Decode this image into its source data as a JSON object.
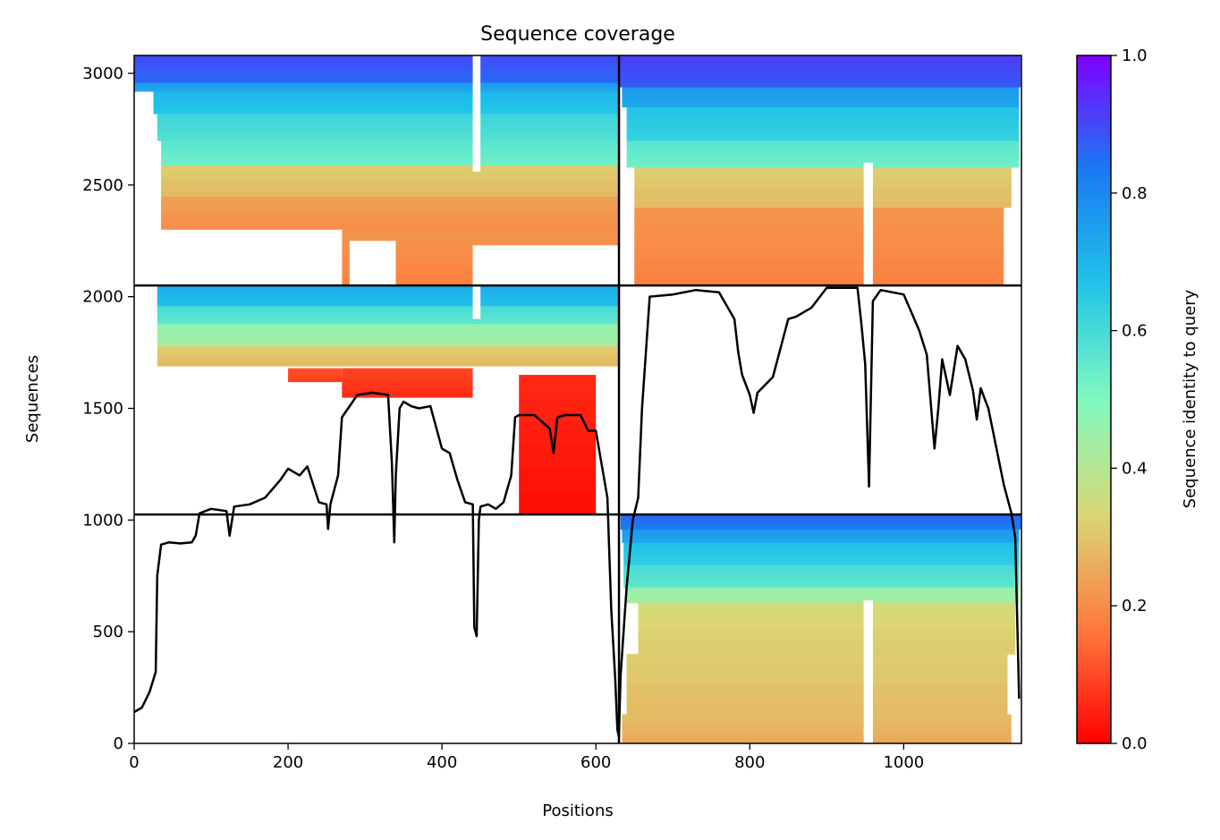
{
  "chart_data": {
    "type": "heatmap",
    "title": "Sequence coverage",
    "xlabel": "Positions",
    "ylabel": "Sequences",
    "xlim": [
      0,
      1153
    ],
    "ylim": [
      0,
      3080
    ],
    "x_ticks": [
      "0",
      "200",
      "400",
      "600",
      "800",
      "1000"
    ],
    "x_tick_values": [
      0,
      200,
      400,
      600,
      800,
      1000
    ],
    "y_ticks": [
      "0",
      "500",
      "1000",
      "1500",
      "2000",
      "2500",
      "3000"
    ],
    "y_tick_values": [
      0,
      500,
      1000,
      1500,
      2000,
      2500,
      3000
    ],
    "colorbar": {
      "label": "Sequence identity to query",
      "range": [
        0.0,
        1.0
      ],
      "ticks": [
        "0.0",
        "0.2",
        "0.4",
        "0.6",
        "0.8",
        "1.0"
      ],
      "tick_values": [
        0.0,
        0.2,
        0.4,
        0.6,
        0.8,
        1.0
      ],
      "colormap": "rainbow_r",
      "colors": [
        "#ff0000",
        "#ff7a3d",
        "#d8d874",
        "#80f9c0",
        "#20c4e8",
        "#1a7af3",
        "#8000ff"
      ]
    },
    "chain_boundaries": {
      "x": [
        630
      ],
      "y": [
        1025,
        2050
      ]
    },
    "blocks": [
      {
        "name": "block-bottom-right",
        "x_range": [
          630,
          1153
        ],
        "y_range": [
          0,
          1025
        ],
        "bands": [
          {
            "y": [
              0,
              130
            ],
            "x": [
              634,
              1140
            ],
            "identity": 0.27
          },
          {
            "y": [
              130,
              400
            ],
            "x": [
              640,
              1135
            ],
            "identity": 0.3
          },
          {
            "y": [
              400,
              630
            ],
            "x": [
              655,
              1145
            ],
            "identity": 0.33
          },
          {
            "y": [
              630,
              700
            ],
            "x": [
              640,
              1150
            ],
            "identity": 0.45
          },
          {
            "y": [
              700,
              800
            ],
            "x": [
              636,
              1150
            ],
            "identity": 0.58
          },
          {
            "y": [
              800,
              900
            ],
            "x": [
              636,
              1150
            ],
            "identity": 0.66
          },
          {
            "y": [
              900,
              960
            ],
            "x": [
              634,
              1150
            ],
            "identity": 0.75
          },
          {
            "y": [
              960,
              1025
            ],
            "x": [
              632,
              1152
            ],
            "identity": 0.85
          }
        ],
        "gaps": [
          {
            "x": [
              948,
              960
            ],
            "y": [
              0,
              640
            ]
          }
        ]
      },
      {
        "name": "block-top-left",
        "x_range": [
          0,
          630
        ],
        "y_range": [
          2050,
          3080
        ],
        "bands": [
          {
            "y": [
              2300,
              2450
            ],
            "x": [
              35,
              630
            ],
            "identity": 0.22
          },
          {
            "y": [
              2450,
              2590
            ],
            "x": [
              35,
              630
            ],
            "identity": 0.3
          },
          {
            "y": [
              2590,
              2700
            ],
            "x": [
              35,
              630
            ],
            "identity": 0.55
          },
          {
            "y": [
              2700,
              2820
            ],
            "x": [
              30,
              630
            ],
            "identity": 0.6
          },
          {
            "y": [
              2820,
              2920
            ],
            "x": [
              25,
              630
            ],
            "identity": 0.68
          },
          {
            "y": [
              2920,
              2960
            ],
            "x": [
              0,
              630
            ],
            "identity": 0.75
          },
          {
            "y": [
              2960,
              3080
            ],
            "x": [
              0,
              630
            ],
            "identity": 0.88
          },
          {
            "y": [
              2050,
              2300
            ],
            "x": [
              270,
              630
            ],
            "identity": 0.2
          }
        ],
        "gaps": [
          {
            "x": [
              440,
              450
            ],
            "y": [
              2560,
              3080
            ]
          },
          {
            "x": [
              280,
              340
            ],
            "y": [
              2050,
              2250
            ]
          },
          {
            "x": [
              440,
              630
            ],
            "y": [
              2050,
              2230
            ]
          },
          {
            "x": [
              0,
              270
            ],
            "y": [
              2050,
              2300
            ]
          }
        ]
      },
      {
        "name": "block-top-right",
        "x_range": [
          630,
          1153
        ],
        "y_range": [
          2050,
          3080
        ],
        "bands": [
          {
            "y": [
              2050,
              2400
            ],
            "x": [
              650,
              1130
            ],
            "identity": 0.2
          },
          {
            "y": [
              2400,
              2580
            ],
            "x": [
              650,
              1140
            ],
            "identity": 0.3
          },
          {
            "y": [
              2580,
              2700
            ],
            "x": [
              640,
              1150
            ],
            "identity": 0.55
          },
          {
            "y": [
              2700,
              2850
            ],
            "x": [
              640,
              1150
            ],
            "identity": 0.65
          },
          {
            "y": [
              2850,
              2940
            ],
            "x": [
              634,
              1150
            ],
            "identity": 0.75
          },
          {
            "y": [
              2940,
              3080
            ],
            "x": [
              630,
              1152
            ],
            "identity": 0.9
          }
        ],
        "gaps": [
          {
            "x": [
              948,
              960
            ],
            "y": [
              2050,
              2600
            ]
          }
        ]
      },
      {
        "name": "block-middle-left",
        "x_range": [
          0,
          630
        ],
        "y_range": [
          1025,
          2050
        ],
        "bands": [
          {
            "y": [
              1025,
              1650
            ],
            "x": [
              500,
              600
            ],
            "identity": 0.04
          },
          {
            "y": [
              1550,
              1680
            ],
            "x": [
              270,
              440
            ],
            "identity": 0.08
          },
          {
            "y": [
              1620,
              1680
            ],
            "x": [
              200,
              270
            ],
            "identity": 0.1
          },
          {
            "y": [
              1690,
              1780
            ],
            "x": [
              30,
              630
            ],
            "identity": 0.3
          },
          {
            "y": [
              1780,
              1880
            ],
            "x": [
              30,
              630
            ],
            "identity": 0.45
          },
          {
            "y": [
              1880,
              1960
            ],
            "x": [
              30,
              630
            ],
            "identity": 0.58
          },
          {
            "y": [
              1960,
              2050
            ],
            "x": [
              30,
              630
            ],
            "identity": 0.7
          }
        ],
        "gaps": [
          {
            "x": [
              440,
              450
            ],
            "y": [
              1900,
              2050
            ]
          }
        ]
      }
    ],
    "coverage_line": {
      "name": "coverage",
      "color": "#000000",
      "x": [
        0,
        10,
        20,
        28,
        30,
        35,
        45,
        60,
        75,
        80,
        85,
        100,
        120,
        124,
        130,
        150,
        170,
        190,
        200,
        215,
        225,
        240,
        250,
        252,
        255,
        265,
        270,
        290,
        310,
        330,
        335,
        338,
        340,
        345,
        350,
        360,
        370,
        385,
        400,
        410,
        420,
        430,
        440,
        442,
        445,
        448,
        450,
        460,
        470,
        480,
        490,
        495,
        500,
        520,
        540,
        545,
        550,
        560,
        580,
        590,
        600,
        615,
        620,
        625,
        628,
        630,
        632,
        640,
        648,
        655,
        660,
        670,
        700,
        730,
        760,
        780,
        785,
        790,
        800,
        805,
        810,
        830,
        850,
        860,
        880,
        900,
        920,
        940,
        945,
        950,
        955,
        960,
        970,
        1000,
        1020,
        1030,
        1040,
        1045,
        1050,
        1060,
        1070,
        1080,
        1090,
        1095,
        1100,
        1110,
        1120,
        1130,
        1140,
        1145,
        1150
      ],
      "y": [
        140,
        160,
        230,
        320,
        750,
        890,
        900,
        895,
        900,
        930,
        1030,
        1050,
        1040,
        930,
        1060,
        1070,
        1100,
        1180,
        1230,
        1200,
        1240,
        1080,
        1070,
        960,
        1070,
        1200,
        1460,
        1560,
        1570,
        1560,
        1250,
        900,
        1200,
        1500,
        1530,
        1510,
        1500,
        1510,
        1320,
        1300,
        1180,
        1080,
        1070,
        520,
        480,
        1000,
        1060,
        1070,
        1050,
        1080,
        1200,
        1460,
        1470,
        1470,
        1410,
        1300,
        1460,
        1470,
        1470,
        1400,
        1400,
        1100,
        600,
        300,
        60,
        30,
        300,
        700,
        1000,
        1100,
        1500,
        2000,
        2010,
        2030,
        2020,
        1900,
        1750,
        1650,
        1560,
        1480,
        1570,
        1640,
        1900,
        1910,
        1950,
        2040,
        2040,
        2040,
        1880,
        1700,
        1150,
        1980,
        2030,
        2010,
        1850,
        1740,
        1320,
        1500,
        1720,
        1560,
        1780,
        1720,
        1580,
        1450,
        1590,
        1500,
        1330,
        1160,
        1030,
        920,
        200
      ]
    }
  }
}
